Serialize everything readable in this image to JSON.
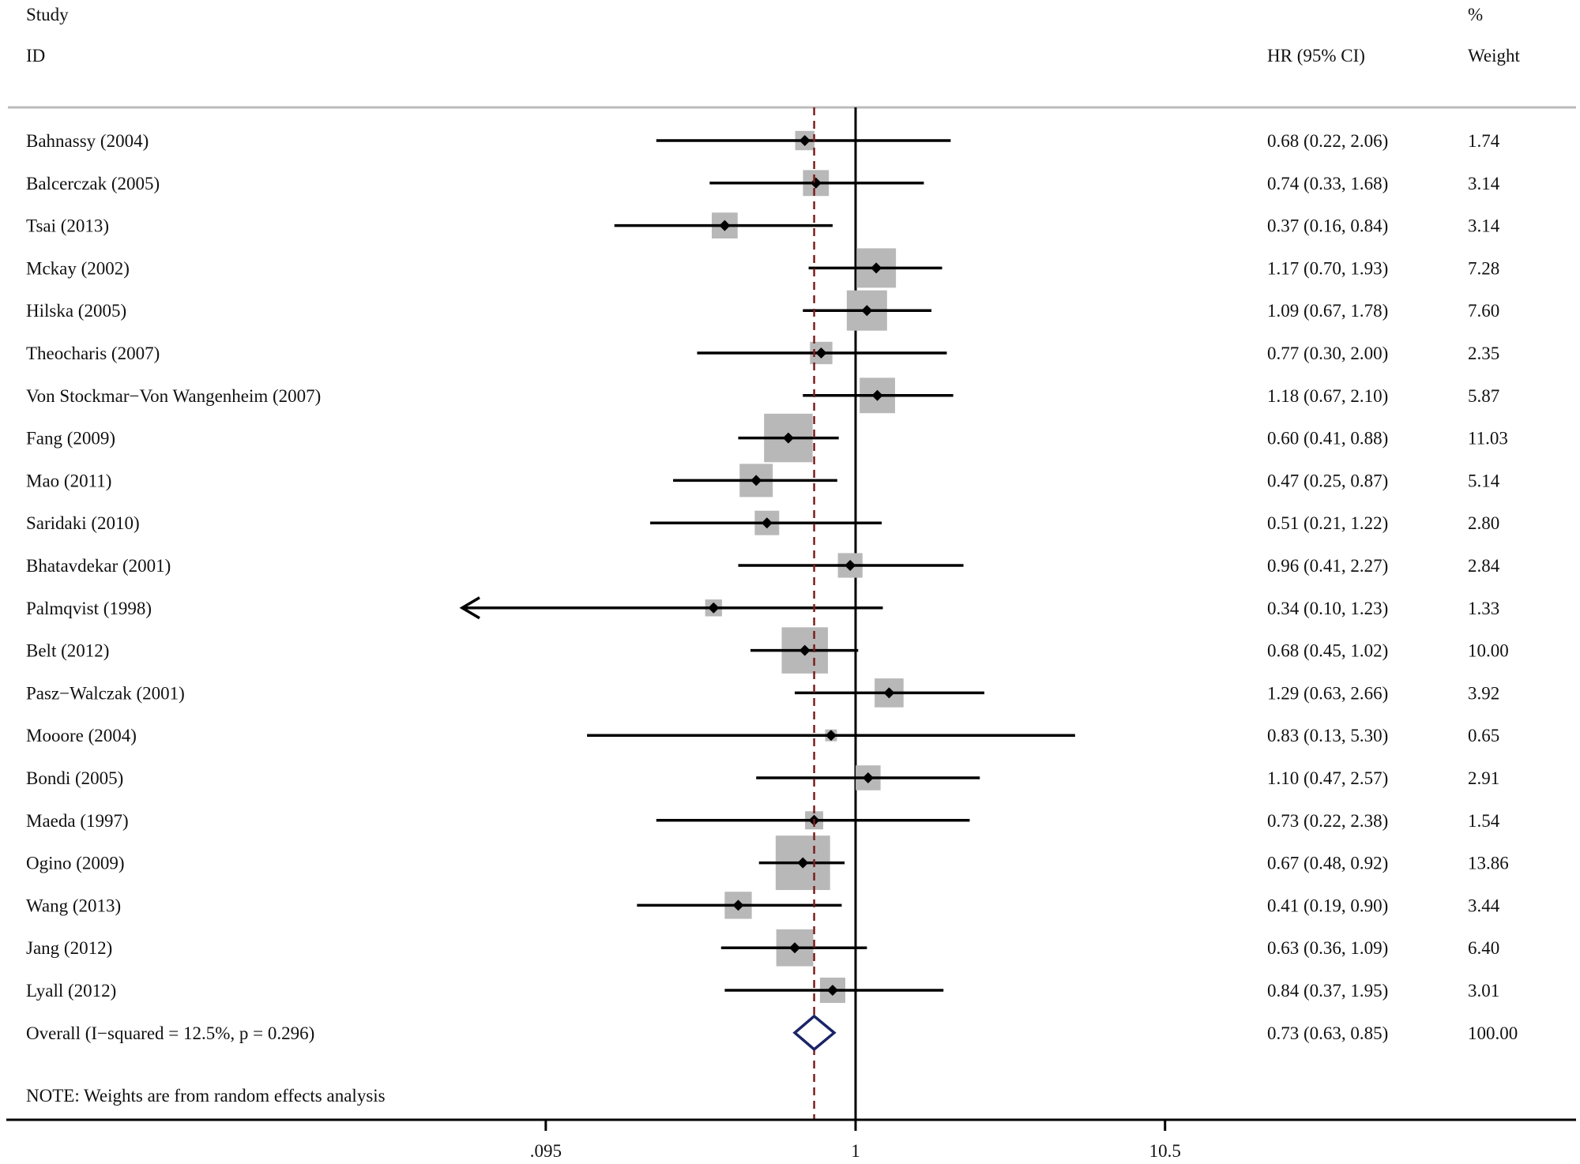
{
  "chart_data": {
    "type": "forest",
    "header": {
      "study_line1": "Study",
      "study_line2": "ID",
      "effect_label": "HR (95% CI)",
      "weight_line1": "%",
      "weight_line2": "Weight"
    },
    "studies": [
      {
        "id": "Bahnassy (2004)",
        "hr": 0.68,
        "lo": 0.22,
        "hi": 2.06,
        "ci_text": "0.68 (0.22, 2.06)",
        "weight": 1.74,
        "weight_text": "1.74"
      },
      {
        "id": "Balcerczak (2005)",
        "hr": 0.74,
        "lo": 0.33,
        "hi": 1.68,
        "ci_text": "0.74 (0.33, 1.68)",
        "weight": 3.14,
        "weight_text": "3.14"
      },
      {
        "id": "Tsai (2013)",
        "hr": 0.37,
        "lo": 0.16,
        "hi": 0.84,
        "ci_text": "0.37 (0.16, 0.84)",
        "weight": 3.14,
        "weight_text": "3.14"
      },
      {
        "id": "Mckay (2002)",
        "hr": 1.17,
        "lo": 0.7,
        "hi": 1.93,
        "ci_text": "1.17 (0.70, 1.93)",
        "weight": 7.28,
        "weight_text": "7.28"
      },
      {
        "id": "Hilska (2005)",
        "hr": 1.09,
        "lo": 0.67,
        "hi": 1.78,
        "ci_text": "1.09 (0.67, 1.78)",
        "weight": 7.6,
        "weight_text": "7.60"
      },
      {
        "id": "Theocharis (2007)",
        "hr": 0.77,
        "lo": 0.3,
        "hi": 2.0,
        "ci_text": "0.77 (0.30, 2.00)",
        "weight": 2.35,
        "weight_text": "2.35"
      },
      {
        "id": "Von Stockmar−Von Wangenheim (2007)",
        "hr": 1.18,
        "lo": 0.67,
        "hi": 2.1,
        "ci_text": "1.18 (0.67, 2.10)",
        "weight": 5.87,
        "weight_text": "5.87"
      },
      {
        "id": "Fang (2009)",
        "hr": 0.6,
        "lo": 0.41,
        "hi": 0.88,
        "ci_text": "0.60 (0.41, 0.88)",
        "weight": 11.03,
        "weight_text": "11.03"
      },
      {
        "id": "Mao (2011)",
        "hr": 0.47,
        "lo": 0.25,
        "hi": 0.87,
        "ci_text": "0.47 (0.25, 0.87)",
        "weight": 5.14,
        "weight_text": "5.14"
      },
      {
        "id": "Saridaki (2010)",
        "hr": 0.51,
        "lo": 0.21,
        "hi": 1.22,
        "ci_text": "0.51 (0.21, 1.22)",
        "weight": 2.8,
        "weight_text": "2.80"
      },
      {
        "id": "Bhatavdekar (2001)",
        "hr": 0.96,
        "lo": 0.41,
        "hi": 2.27,
        "ci_text": "0.96 (0.41, 2.27)",
        "weight": 2.84,
        "weight_text": "2.84"
      },
      {
        "id": "Palmqvist (1998)",
        "hr": 0.34,
        "lo": 0.1,
        "hi": 1.23,
        "ci_text": "0.34 (0.10, 1.23)",
        "weight": 1.33,
        "weight_text": "1.33",
        "truncated_left": true
      },
      {
        "id": "Belt (2012)",
        "hr": 0.68,
        "lo": 0.45,
        "hi": 1.02,
        "ci_text": "0.68 (0.45, 1.02)",
        "weight": 10.0,
        "weight_text": "10.00"
      },
      {
        "id": "Pasz−Walczak (2001)",
        "hr": 1.29,
        "lo": 0.63,
        "hi": 2.66,
        "ci_text": "1.29 (0.63, 2.66)",
        "weight": 3.92,
        "weight_text": "3.92"
      },
      {
        "id": "Mooore (2004)",
        "hr": 0.83,
        "lo": 0.13,
        "hi": 5.3,
        "ci_text": "0.83 (0.13, 5.30)",
        "weight": 0.65,
        "weight_text": "0.65"
      },
      {
        "id": "Bondi (2005)",
        "hr": 1.1,
        "lo": 0.47,
        "hi": 2.57,
        "ci_text": "1.10 (0.47, 2.57)",
        "weight": 2.91,
        "weight_text": "2.91"
      },
      {
        "id": "Maeda (1997)",
        "hr": 0.73,
        "lo": 0.22,
        "hi": 2.38,
        "ci_text": "0.73 (0.22, 2.38)",
        "weight": 1.54,
        "weight_text": "1.54"
      },
      {
        "id": "Ogino (2009)",
        "hr": 0.67,
        "lo": 0.48,
        "hi": 0.92,
        "ci_text": "0.67 (0.48, 0.92)",
        "weight": 13.86,
        "weight_text": "13.86"
      },
      {
        "id": "Wang (2013)",
        "hr": 0.41,
        "lo": 0.19,
        "hi": 0.9,
        "ci_text": "0.41 (0.19, 0.90)",
        "weight": 3.44,
        "weight_text": "3.44"
      },
      {
        "id": "Jang (2012)",
        "hr": 0.63,
        "lo": 0.36,
        "hi": 1.09,
        "ci_text": "0.63 (0.36, 1.09)",
        "weight": 6.4,
        "weight_text": "6.40"
      },
      {
        "id": "Lyall (2012)",
        "hr": 0.84,
        "lo": 0.37,
        "hi": 1.95,
        "ci_text": "0.84 (0.37, 1.95)",
        "weight": 3.01,
        "weight_text": "3.01"
      }
    ],
    "overall": {
      "label": "Overall  (I−squared = 12.5%, p = 0.296)",
      "hr": 0.73,
      "lo": 0.63,
      "hi": 0.85,
      "ci_text": "0.73 (0.63, 0.85)",
      "weight_text": "100.00"
    },
    "note": "NOTE: Weights are from random effects analysis",
    "x_axis": {
      "scale": "log",
      "ticks": [
        {
          "value": 0.095,
          "label": ".095"
        },
        {
          "value": 1,
          "label": "1"
        },
        {
          "value": 10.5,
          "label": "10.5"
        }
      ],
      "range": [
        0.095,
        10.5
      ]
    },
    "null_line": 1,
    "overall_line": 0.73,
    "colors": {
      "box": "#b8b8b8",
      "line": "#000000",
      "overall_line": "#7a1f1f",
      "diamond": "#1a2466",
      "separator": "#bbbbbb"
    }
  }
}
